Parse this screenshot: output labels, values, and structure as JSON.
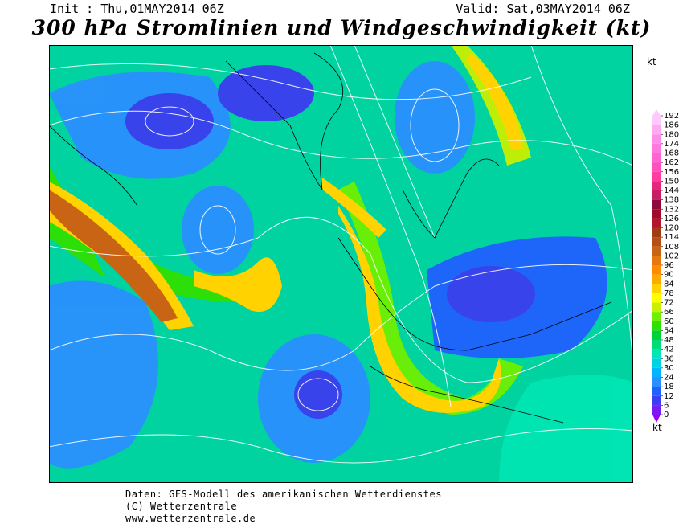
{
  "header": {
    "init": "Init : Thu,01MAY2014 06Z",
    "valid": "Valid: Sat,03MAY2014 06Z",
    "title": "300 hPa Stromlinien und Windgeschwindigkeit (kt)"
  },
  "legend": {
    "unit": "kt",
    "ticks": [
      0,
      6,
      12,
      18,
      24,
      30,
      36,
      42,
      48,
      54,
      60,
      66,
      72,
      78,
      84,
      90,
      96,
      102,
      108,
      114,
      120,
      126,
      132,
      138,
      144,
      150,
      156,
      162,
      168,
      174,
      180,
      186,
      192
    ],
    "colors": [
      "#9900ff",
      "#7a1cf0",
      "#3c3cf0",
      "#2060ff",
      "#2a90ff",
      "#00b4ff",
      "#00d2e6",
      "#00e6b4",
      "#00dc78",
      "#00d23c",
      "#30e000",
      "#6ef000",
      "#c8f000",
      "#ffff00",
      "#ffd200",
      "#ffaa00",
      "#ff8c00",
      "#e67814",
      "#c86414",
      "#b45014",
      "#a03c14",
      "#b4142d",
      "#a00a28",
      "#8c0a3c",
      "#c81e64",
      "#e6287d",
      "#ff3ca0",
      "#ff50be",
      "#ff64d2",
      "#ff78dc",
      "#ff8ce6",
      "#ffaaf0",
      "#ffc8ff"
    ]
  },
  "footer": {
    "lines": [
      "Daten: GFS-Modell des amerikanischen Wetterdienstes",
      "(C) Wetterzentrale",
      "www.wetterzentrale.de"
    ]
  }
}
